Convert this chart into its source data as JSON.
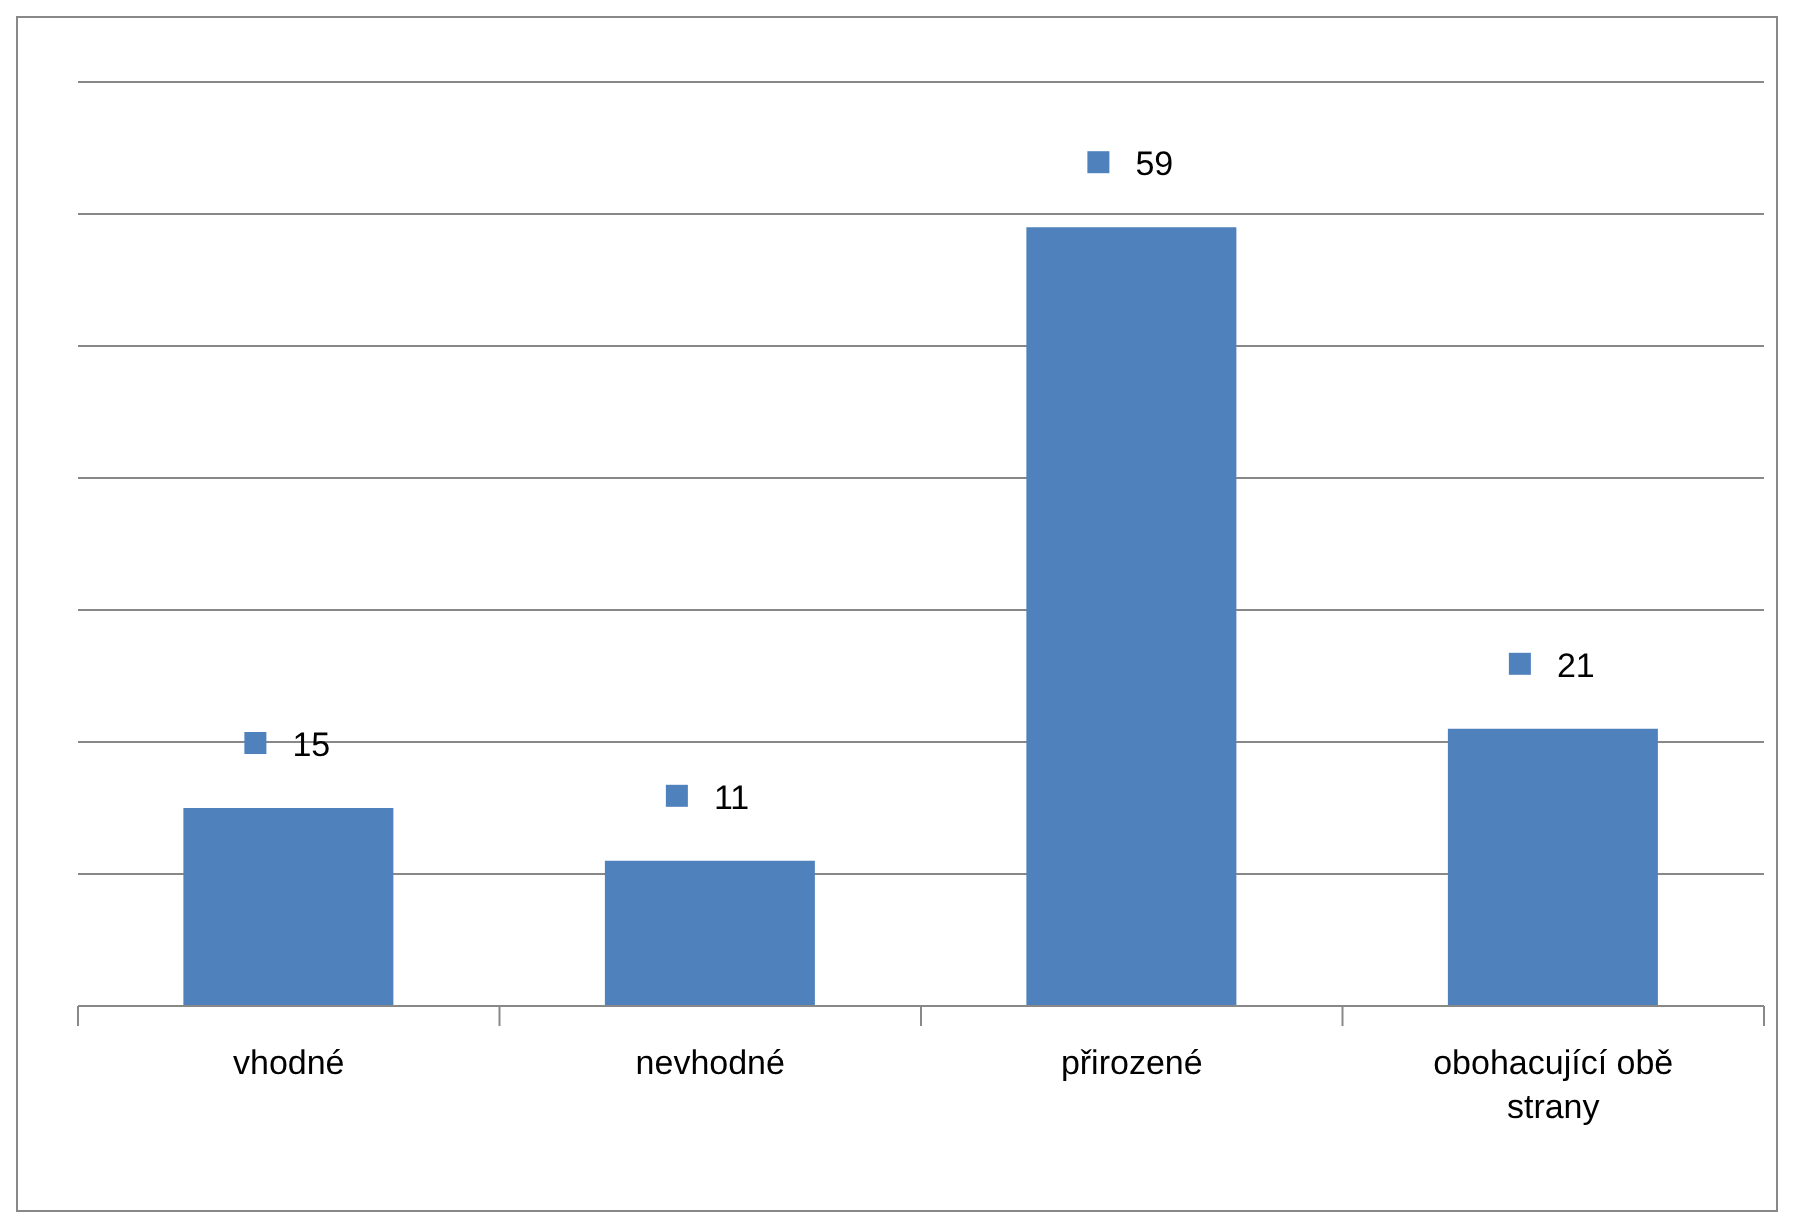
{
  "chart_data": {
    "type": "bar",
    "categories": [
      "vhodné",
      "nevhodné",
      "přirozené",
      "obohacující obě strany"
    ],
    "series": [
      {
        "color": "#4f81bd",
        "values": [
          15,
          11,
          59,
          21
        ]
      }
    ],
    "ylim": [
      0,
      70
    ],
    "yticks": [
      {
        "value": 0,
        "label": null
      },
      {
        "value": 10,
        "label": null
      },
      {
        "value": 20,
        "label": null
      },
      {
        "value": 30,
        "label": null
      },
      {
        "value": 40,
        "label": null
      },
      {
        "value": 50,
        "label": null
      },
      {
        "value": 60,
        "label": null
      },
      {
        "value": 70,
        "label": null
      }
    ],
    "grid": "y",
    "tick_labels": "x",
    "data_labels": true
  }
}
